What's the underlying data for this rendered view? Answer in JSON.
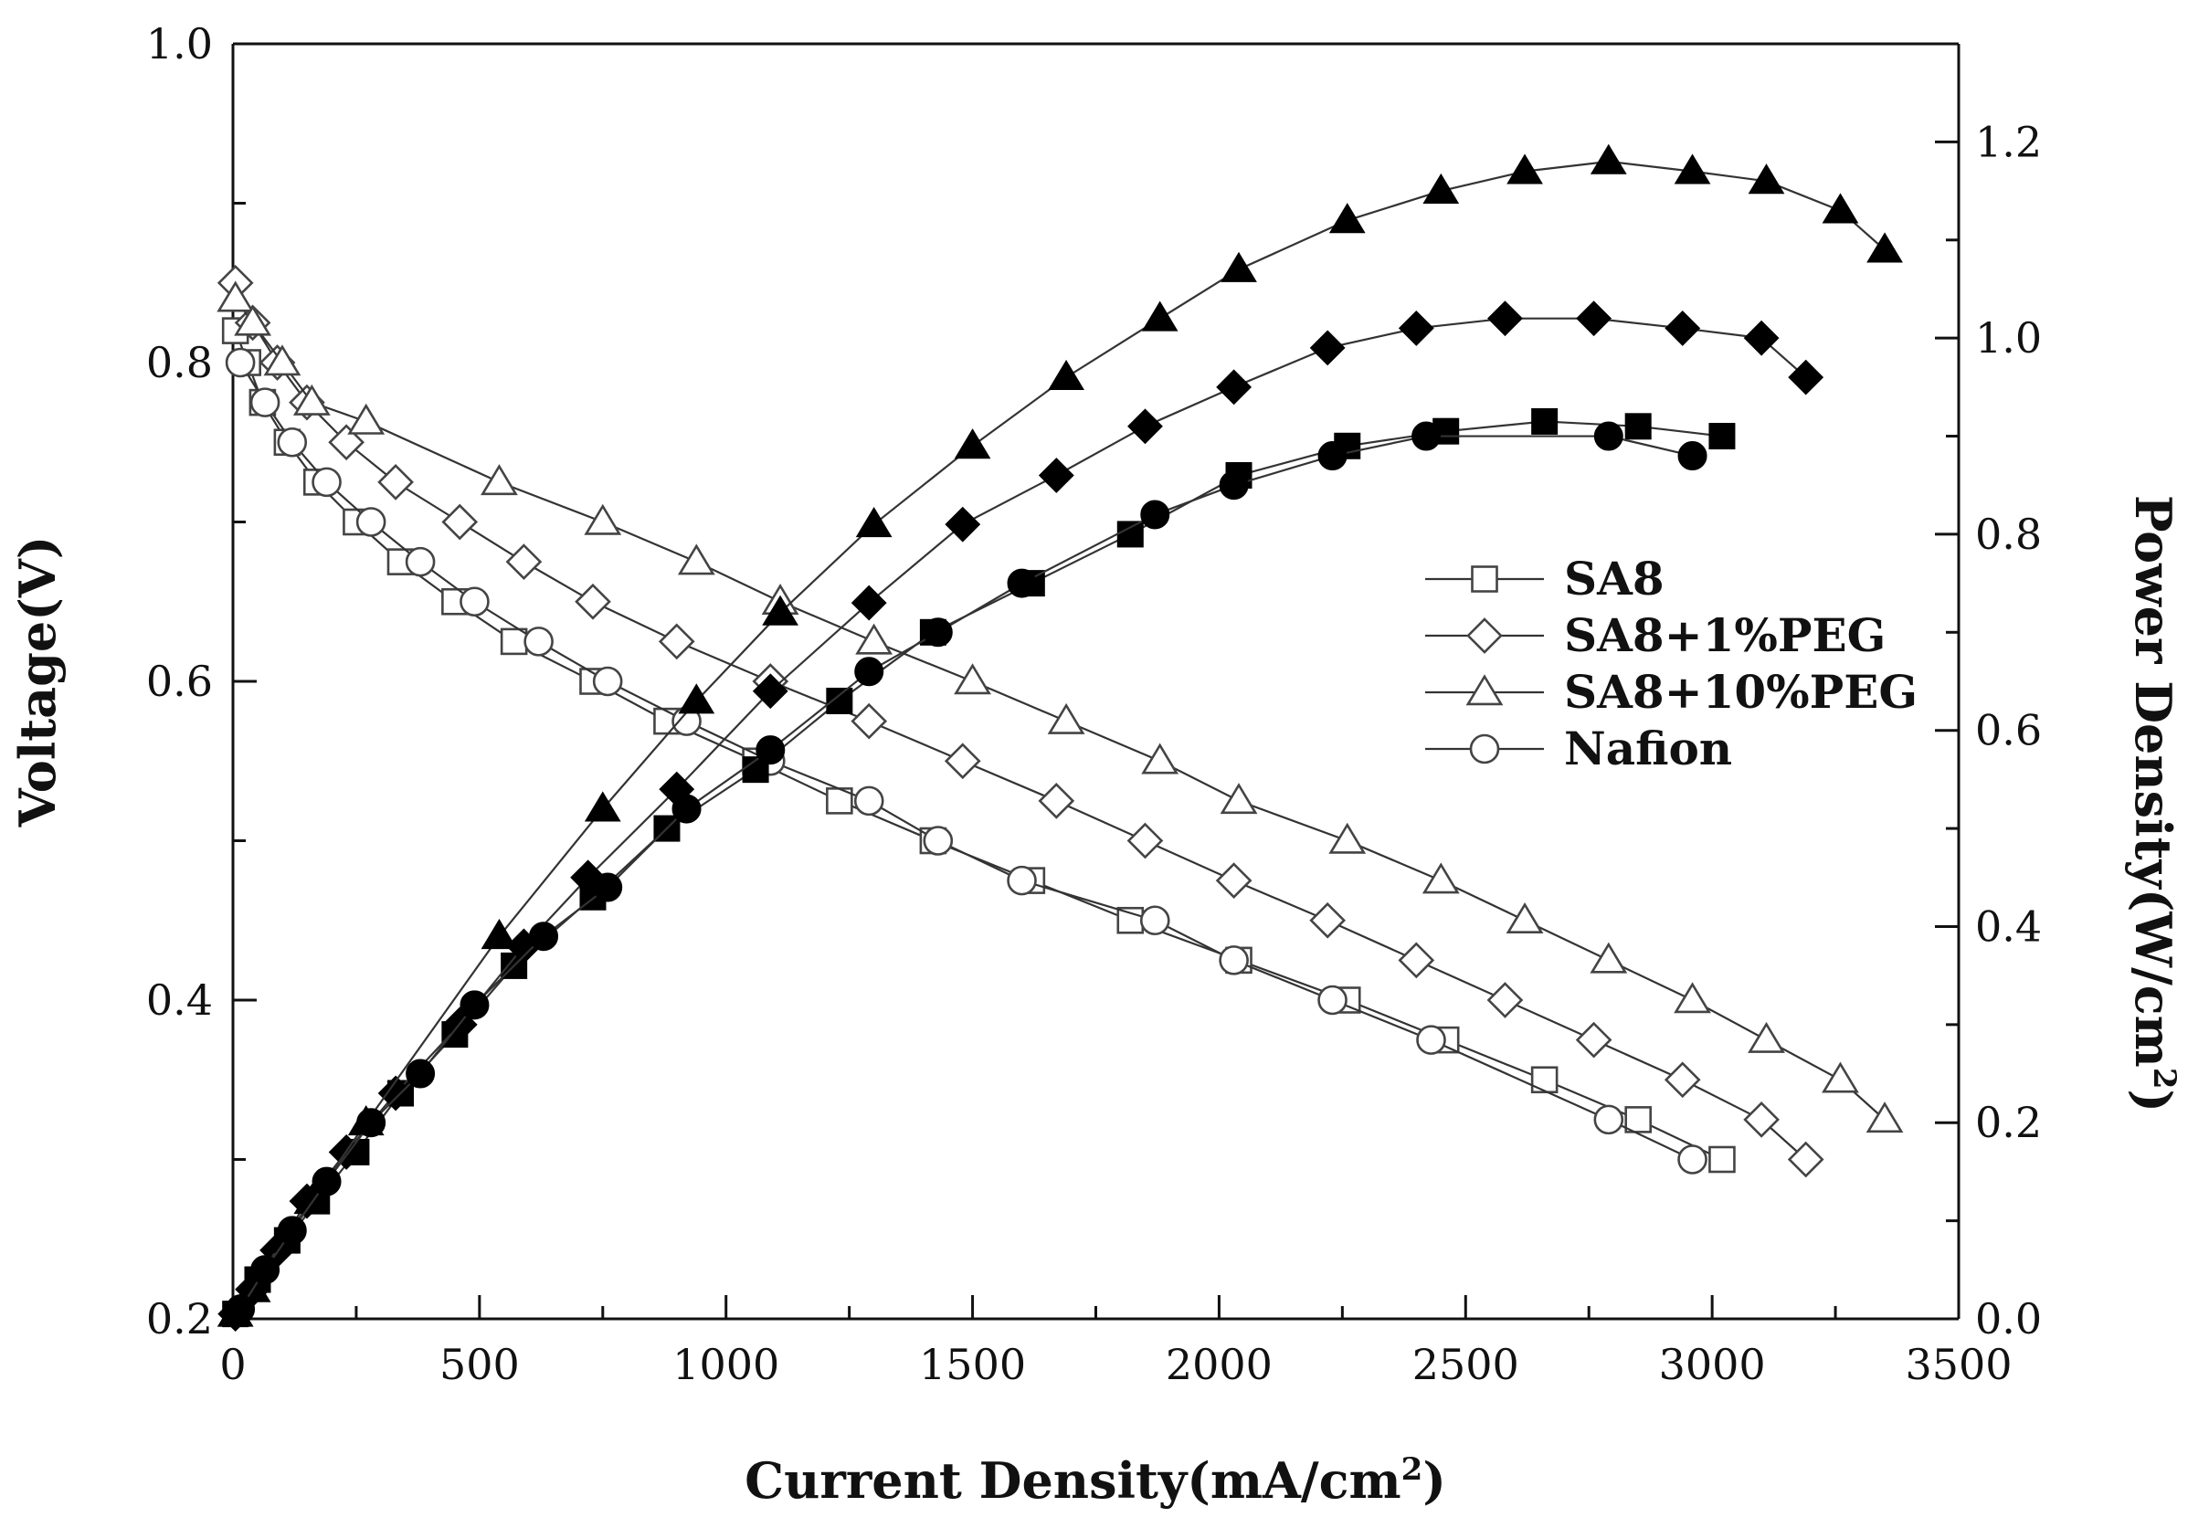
{
  "chart_data": {
    "type": "line",
    "xlabel": "Current Density(mA/cm2)",
    "ylabel_left": "Voltage(V)",
    "ylabel_right": "Power Density(W/cm2)",
    "xlim": [
      0,
      3500
    ],
    "ylim_left": [
      0.2,
      1.0
    ],
    "ylim_right": [
      0.0,
      1.3
    ],
    "x_ticks": [
      0,
      500,
      1000,
      1500,
      2000,
      2500,
      3000,
      3500
    ],
    "x_tick_labels": [
      "0",
      "500",
      "1000",
      "1500",
      "2000",
      "2500",
      "3000",
      "3500"
    ],
    "y_left_ticks": [
      0.2,
      0.4,
      0.6,
      0.8,
      1.0
    ],
    "y_left_tick_labels": [
      "0.2",
      "0.4",
      "0.6",
      "0.8",
      "1.0"
    ],
    "y_right_ticks": [
      0.0,
      0.2,
      0.4,
      0.6,
      0.8,
      1.0,
      1.2
    ],
    "y_right_tick_labels": [
      "0.0",
      "0.2",
      "0.4",
      "0.6",
      "0.8",
      "1.0",
      "1.2"
    ],
    "legend_position": "right",
    "legend": [
      "SA8",
      "SA8+1%PEG",
      "SA8+10%PEG",
      "Nafion"
    ],
    "series": [
      {
        "name": "SA8",
        "marker": "square",
        "axis": "left",
        "x": [
          5,
          30,
          60,
          110,
          170,
          250,
          340,
          450,
          570,
          730,
          880,
          1060,
          1230,
          1420,
          1620,
          1820,
          2040,
          2260,
          2460,
          2660,
          2850,
          3020
        ],
        "y": [
          0.82,
          0.8,
          0.775,
          0.75,
          0.725,
          0.7,
          0.675,
          0.65,
          0.625,
          0.6,
          0.575,
          0.55,
          0.525,
          0.5,
          0.475,
          0.45,
          0.425,
          0.4,
          0.375,
          0.35,
          0.325,
          0.3
        ]
      },
      {
        "name": "SA8+1%PEG",
        "marker": "diamond",
        "axis": "left",
        "x": [
          5,
          40,
          90,
          150,
          230,
          330,
          460,
          590,
          730,
          900,
          1090,
          1290,
          1480,
          1670,
          1850,
          2030,
          2220,
          2400,
          2580,
          2760,
          2940,
          3100,
          3190
        ],
        "y": [
          0.85,
          0.825,
          0.8,
          0.775,
          0.75,
          0.725,
          0.7,
          0.675,
          0.65,
          0.625,
          0.6,
          0.575,
          0.55,
          0.525,
          0.5,
          0.475,
          0.45,
          0.425,
          0.4,
          0.375,
          0.35,
          0.325,
          0.3
        ]
      },
      {
        "name": "SA8+10%PEG",
        "marker": "triangle",
        "axis": "left",
        "x": [
          5,
          40,
          100,
          160,
          270,
          540,
          750,
          940,
          1110,
          1300,
          1500,
          1690,
          1880,
          2040,
          2260,
          2450,
          2620,
          2790,
          2960,
          3110,
          3260,
          3350
        ],
        "y": [
          0.84,
          0.825,
          0.8,
          0.775,
          0.763,
          0.725,
          0.7,
          0.675,
          0.65,
          0.625,
          0.6,
          0.575,
          0.55,
          0.525,
          0.5,
          0.475,
          0.45,
          0.425,
          0.4,
          0.375,
          0.35,
          0.325
        ]
      },
      {
        "name": "Nafion",
        "marker": "circle",
        "axis": "left",
        "x": [
          15,
          65,
          120,
          190,
          280,
          380,
          490,
          620,
          760,
          920,
          1090,
          1290,
          1430,
          1600,
          1870,
          2030,
          2230,
          2430,
          2790,
          2960
        ],
        "y": [
          0.8,
          0.775,
          0.75,
          0.725,
          0.7,
          0.675,
          0.65,
          0.625,
          0.6,
          0.575,
          0.55,
          0.525,
          0.5,
          0.475,
          0.45,
          0.425,
          0.4,
          0.375,
          0.325,
          0.3
        ]
      },
      {
        "name": "SA8 (power)",
        "marker": "square-filled",
        "axis": "right",
        "x": [
          5,
          50,
          110,
          170,
          250,
          340,
          450,
          570,
          730,
          880,
          1060,
          1230,
          1420,
          1620,
          1820,
          2040,
          2260,
          2460,
          2660,
          2850,
          3020
        ],
        "y": [
          0.005,
          0.04,
          0.08,
          0.12,
          0.17,
          0.23,
          0.29,
          0.36,
          0.43,
          0.5,
          0.56,
          0.63,
          0.7,
          0.75,
          0.8,
          0.86,
          0.89,
          0.905,
          0.915,
          0.91,
          0.9
        ]
      },
      {
        "name": "SA8+1%PEG (power)",
        "marker": "diamond-filled",
        "axis": "right",
        "x": [
          5,
          40,
          90,
          150,
          230,
          330,
          460,
          590,
          720,
          900,
          1090,
          1290,
          1480,
          1670,
          1850,
          2030,
          2220,
          2400,
          2580,
          2760,
          2940,
          3100,
          3190
        ],
        "y": [
          0.005,
          0.03,
          0.07,
          0.12,
          0.17,
          0.23,
          0.3,
          0.38,
          0.45,
          0.54,
          0.64,
          0.73,
          0.81,
          0.86,
          0.91,
          0.95,
          0.99,
          1.01,
          1.02,
          1.02,
          1.01,
          1.0,
          0.96
        ]
      },
      {
        "name": "SA8+10%PEG (power)",
        "marker": "triangle-filled",
        "axis": "right",
        "x": [
          5,
          40,
          100,
          160,
          270,
          540,
          750,
          940,
          1110,
          1300,
          1500,
          1690,
          1880,
          2040,
          2260,
          2450,
          2620,
          2790,
          2960,
          3110,
          3260,
          3350
        ],
        "y": [
          0.005,
          0.03,
          0.08,
          0.12,
          0.2,
          0.39,
          0.52,
          0.63,
          0.72,
          0.81,
          0.89,
          0.96,
          1.02,
          1.07,
          1.12,
          1.15,
          1.17,
          1.18,
          1.17,
          1.16,
          1.13,
          1.09
        ]
      },
      {
        "name": "Nafion (power)",
        "marker": "circle-filled",
        "axis": "right",
        "x": [
          15,
          65,
          120,
          190,
          280,
          380,
          490,
          630,
          760,
          920,
          1090,
          1290,
          1430,
          1600,
          1870,
          2030,
          2230,
          2420,
          2790,
          2960
        ],
        "y": [
          0.01,
          0.05,
          0.09,
          0.14,
          0.2,
          0.25,
          0.32,
          0.39,
          0.44,
          0.52,
          0.58,
          0.66,
          0.7,
          0.75,
          0.82,
          0.85,
          0.88,
          0.9,
          0.9,
          0.88
        ]
      }
    ]
  }
}
